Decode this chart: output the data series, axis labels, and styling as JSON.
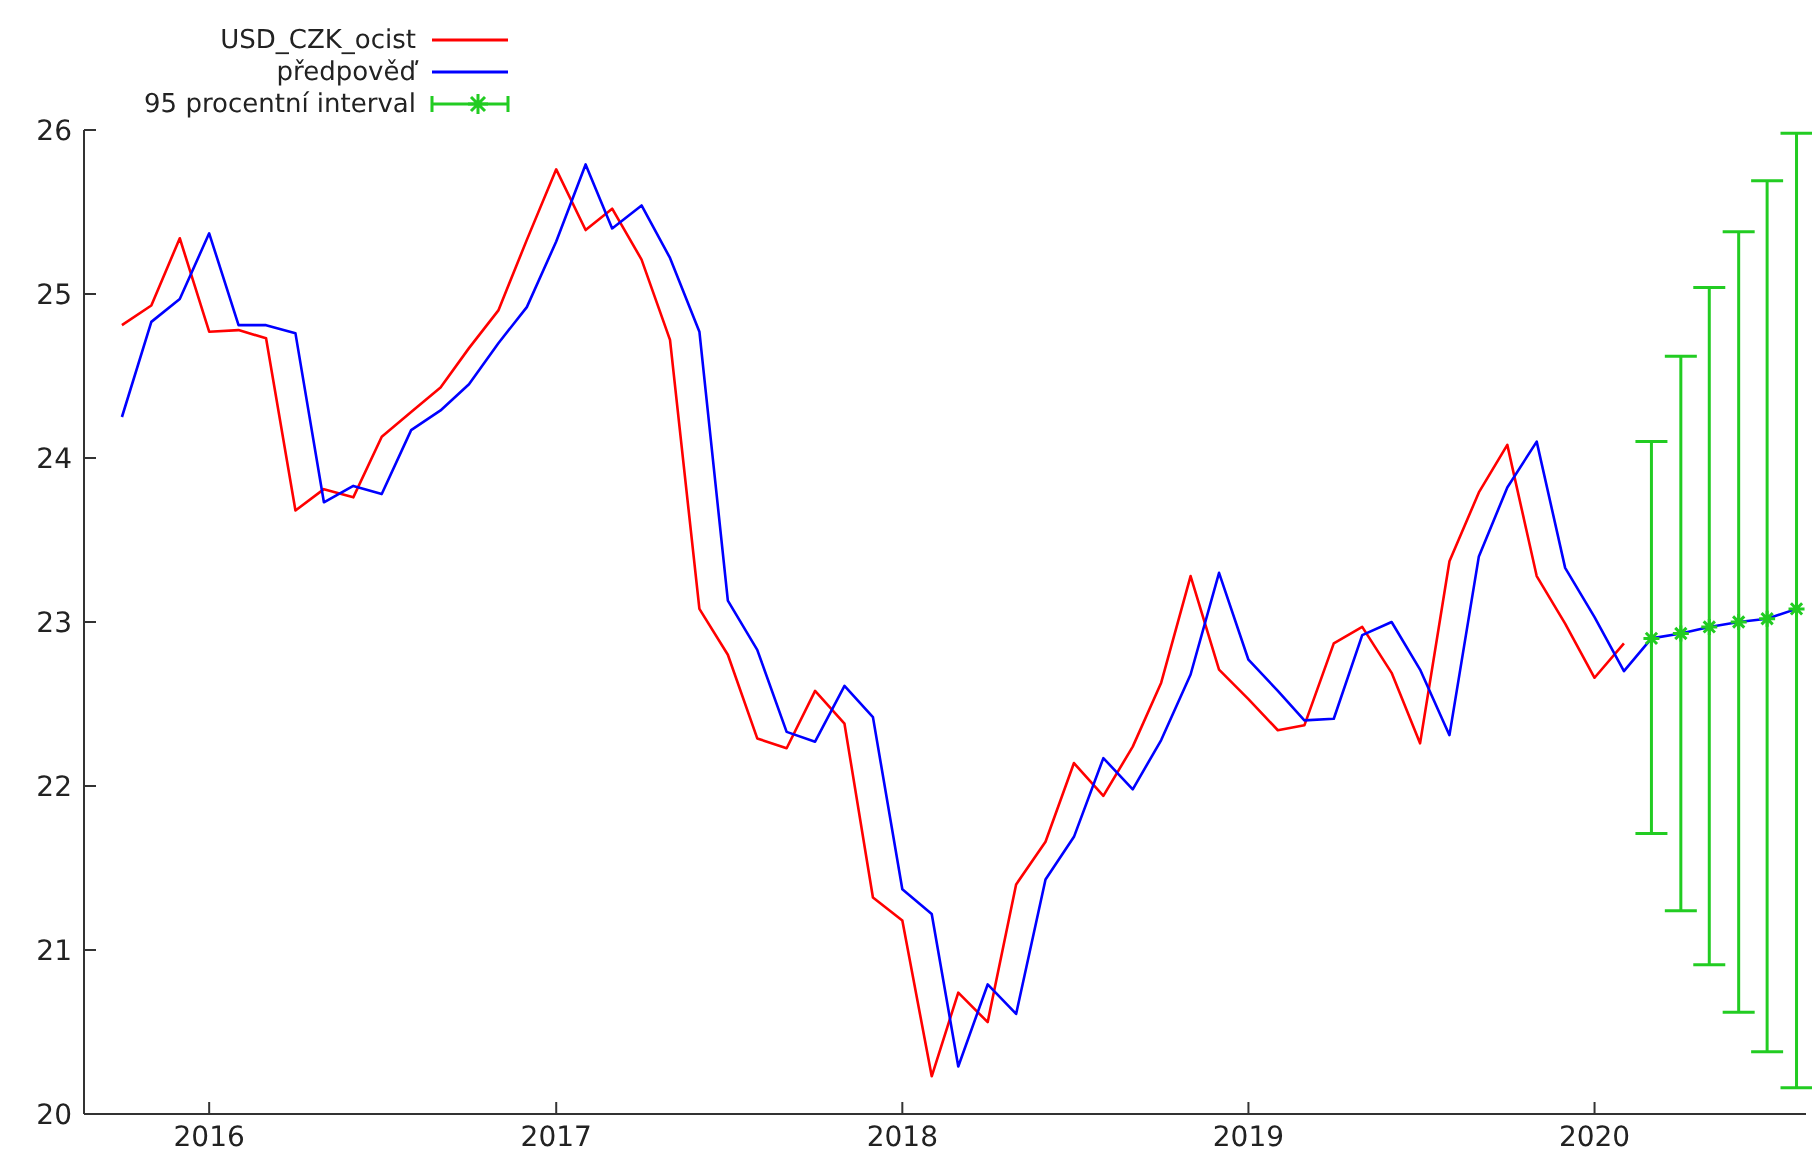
{
  "chart_data": {
    "type": "line",
    "legend": "top left",
    "grid": false,
    "marker": "none",
    "xlim": [
      "2015-08-22",
      "2020-08-11"
    ],
    "xticks": [
      "2016",
      "2017",
      "2018",
      "2019",
      "2020"
    ],
    "ylim": [
      20,
      26
    ],
    "yticks": [
      20,
      21,
      22,
      23,
      24,
      25,
      26
    ],
    "series": [
      {
        "name": "USD_CZK_ocist",
        "color": "#ff0000",
        "x": [
          "2015-10",
          "2015-11",
          "2015-12",
          "2016-01",
          "2016-02",
          "2016-03",
          "2016-04",
          "2016-05",
          "2016-06",
          "2016-07",
          "2016-08",
          "2016-09",
          "2016-10",
          "2016-11",
          "2016-12",
          "2017-01",
          "2017-02",
          "2017-03",
          "2017-04",
          "2017-05",
          "2017-06",
          "2017-07",
          "2017-08",
          "2017-09",
          "2017-10",
          "2017-11",
          "2017-12",
          "2018-01",
          "2018-02",
          "2018-03",
          "2018-04",
          "2018-05",
          "2018-06",
          "2018-07",
          "2018-08",
          "2018-09",
          "2018-10",
          "2018-11",
          "2018-12",
          "2019-01",
          "2019-02",
          "2019-03",
          "2019-04",
          "2019-05",
          "2019-06",
          "2019-07",
          "2019-08",
          "2019-09",
          "2019-10",
          "2019-11",
          "2019-12",
          "2020-01",
          "2020-02"
        ],
        "values": [
          24.81,
          24.93,
          25.34,
          24.77,
          24.78,
          24.73,
          23.68,
          23.81,
          23.76,
          24.13,
          24.28,
          24.43,
          24.67,
          24.9,
          25.33,
          25.76,
          25.39,
          25.52,
          25.21,
          24.72,
          23.08,
          22.8,
          22.29,
          22.23,
          22.58,
          22.38,
          21.32,
          21.18,
          20.23,
          20.74,
          20.56,
          21.4,
          21.66,
          22.14,
          21.94,
          22.24,
          22.63,
          23.28,
          22.71,
          22.53,
          22.34,
          22.37,
          22.87,
          22.97,
          22.69,
          22.26,
          23.37,
          23.79,
          24.08,
          23.28,
          22.99,
          22.66,
          22.87
        ]
      },
      {
        "name": "předpověď",
        "color": "#0000ff",
        "x": [
          "2015-10",
          "2015-11",
          "2015-12",
          "2016-01",
          "2016-02",
          "2016-03",
          "2016-04",
          "2016-05",
          "2016-06",
          "2016-07",
          "2016-08",
          "2016-09",
          "2016-10",
          "2016-11",
          "2016-12",
          "2017-01",
          "2017-02",
          "2017-03",
          "2017-04",
          "2017-05",
          "2017-06",
          "2017-07",
          "2017-08",
          "2017-09",
          "2017-10",
          "2017-11",
          "2017-12",
          "2018-01",
          "2018-02",
          "2018-03",
          "2018-04",
          "2018-05",
          "2018-06",
          "2018-07",
          "2018-08",
          "2018-09",
          "2018-10",
          "2018-11",
          "2018-12",
          "2019-01",
          "2019-02",
          "2019-03",
          "2019-04",
          "2019-05",
          "2019-06",
          "2019-07",
          "2019-08",
          "2019-09",
          "2019-10",
          "2019-11",
          "2019-12",
          "2020-01",
          "2020-02",
          "2020-03",
          "2020-04",
          "2020-05",
          "2020-06",
          "2020-07",
          "2020-08"
        ],
        "values": [
          24.25,
          24.83,
          24.97,
          25.37,
          24.81,
          24.81,
          24.76,
          23.73,
          23.83,
          23.78,
          24.17,
          24.29,
          24.45,
          24.7,
          24.92,
          25.32,
          25.79,
          25.4,
          25.54,
          25.22,
          24.77,
          23.13,
          22.83,
          22.33,
          22.27,
          22.61,
          22.42,
          21.37,
          21.22,
          20.29,
          20.79,
          20.61,
          21.43,
          21.69,
          22.17,
          21.98,
          22.28,
          22.68,
          23.3,
          22.77,
          22.58,
          22.4,
          22.41,
          22.92,
          23.0,
          22.71,
          22.31,
          23.4,
          23.82,
          24.1,
          23.33,
          23.03,
          22.7,
          22.9,
          22.93,
          22.97,
          23.0,
          23.02,
          23.08
        ]
      },
      {
        "name": "95 procentní interval",
        "type": "scatter",
        "marker": "cross",
        "color": "#22cc22",
        "x": [
          "2020-03",
          "2020-04",
          "2020-05",
          "2020-06",
          "2020-07",
          "2020-08"
        ],
        "values": [
          22.9,
          22.93,
          22.97,
          23.0,
          23.02,
          23.08
        ],
        "errors": [
          [
            21.71,
            24.1
          ],
          [
            21.24,
            24.62
          ],
          [
            20.91,
            25.04
          ],
          [
            20.62,
            25.38
          ],
          [
            20.38,
            25.69
          ],
          [
            20.16,
            25.98
          ]
        ]
      }
    ]
  }
}
